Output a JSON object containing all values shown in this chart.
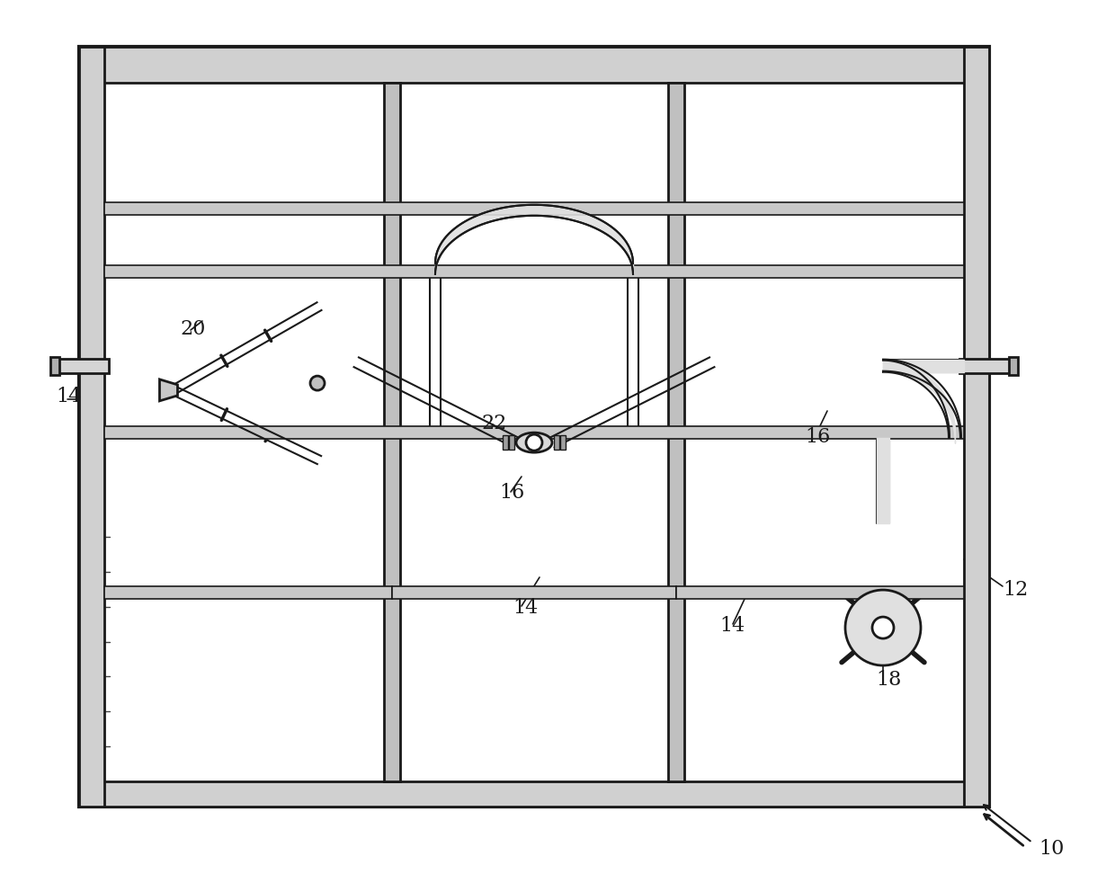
{
  "bg_color": "#ffffff",
  "line_color": "#1a1a1a",
  "fill_light": "#e8e8e8",
  "fill_lighter": "#f0f0f0",
  "label_10": "10",
  "label_12": "12",
  "label_14": "14",
  "label_16": "16",
  "label_18": "18",
  "label_20": "20",
  "label_22": "22"
}
